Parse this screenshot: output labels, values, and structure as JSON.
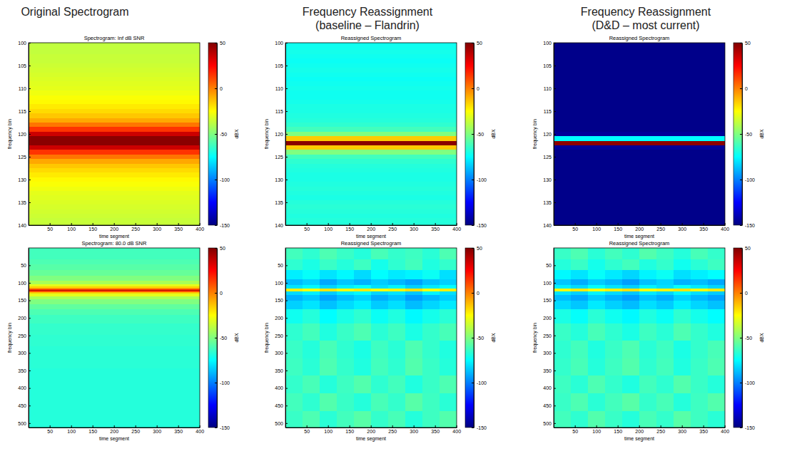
{
  "column_titles": [
    [
      "Original Spectrogram"
    ],
    [
      "Frequency Reassignment",
      "(baseline – Flandrin)"
    ],
    [
      "Frequency Reassignment",
      "(D&D – most current)"
    ]
  ],
  "chart_data": [
    {
      "type": "heatmap",
      "title": "Spectrogram: Inf dB SNR",
      "xlabel": "time segment",
      "ylabel": "frequency bin",
      "x": [
        200
      ],
      "y": [
        100,
        101,
        102,
        103,
        104,
        105,
        106,
        107,
        108,
        109,
        110,
        111,
        112,
        113,
        114,
        115,
        116,
        117,
        118,
        119,
        120,
        121,
        122,
        123,
        124,
        125,
        126,
        127,
        128,
        129,
        130,
        131,
        132,
        133,
        134,
        135,
        136,
        137,
        138,
        139,
        140
      ],
      "z": [
        [
          -38
        ],
        [
          -37
        ],
        [
          -37
        ],
        [
          -36
        ],
        [
          -36
        ],
        [
          -35
        ],
        [
          -34
        ],
        [
          -33
        ],
        [
          -32
        ],
        [
          -31
        ],
        [
          -30
        ],
        [
          -28
        ],
        [
          -26
        ],
        [
          -24
        ],
        [
          -21
        ],
        [
          -18
        ],
        [
          -14
        ],
        [
          -8
        ],
        [
          2
        ],
        [
          15
        ],
        [
          35
        ],
        [
          48
        ],
        [
          48
        ],
        [
          35
        ],
        [
          15
        ],
        [
          2
        ],
        [
          -8
        ],
        [
          -14
        ],
        [
          -18
        ],
        [
          -21
        ],
        [
          -24
        ],
        [
          -26
        ],
        [
          -28
        ],
        [
          -30
        ],
        [
          -31
        ],
        [
          -32
        ],
        [
          -33
        ],
        [
          -34
        ],
        [
          -35
        ],
        [
          -36
        ],
        [
          -36
        ]
      ],
      "xlim": [
        0.5,
        400.5
      ],
      "ylim": [
        100,
        140
      ],
      "xticks": [
        50,
        100,
        150,
        200,
        250,
        300,
        350,
        400
      ],
      "yticks": [
        100,
        105,
        110,
        115,
        120,
        125,
        130,
        135,
        140
      ],
      "colorbar": {
        "label": "dBX",
        "range": [
          -150,
          50
        ],
        "ticks": [
          50,
          0,
          -50,
          -100,
          -150
        ]
      }
    },
    {
      "type": "heatmap",
      "title": "Reassigned Spectrogram",
      "xlabel": "time segment",
      "ylabel": "frequency bin",
      "x": [
        200
      ],
      "y": [
        100,
        101,
        102,
        103,
        104,
        105,
        106,
        107,
        108,
        109,
        110,
        111,
        112,
        113,
        114,
        115,
        116,
        117,
        118,
        119,
        120,
        121,
        122,
        123,
        124,
        125,
        126,
        127,
        128,
        129,
        130,
        131,
        132,
        133,
        134,
        135,
        136,
        137,
        138,
        139,
        140
      ],
      "z": [
        [
          -72
        ],
        [
          -72
        ],
        [
          -71
        ],
        [
          -72
        ],
        [
          -73
        ],
        [
          -72
        ],
        [
          -71
        ],
        [
          -72
        ],
        [
          -73
        ],
        [
          -72
        ],
        [
          -71
        ],
        [
          -72
        ],
        [
          -72
        ],
        [
          -71
        ],
        [
          -70
        ],
        [
          -70
        ],
        [
          -69
        ],
        [
          -68
        ],
        [
          -66
        ],
        [
          -62
        ],
        [
          -50
        ],
        [
          -15
        ],
        [
          48
        ],
        [
          -15
        ],
        [
          -50
        ],
        [
          -62
        ],
        [
          -66
        ],
        [
          -68
        ],
        [
          -69
        ],
        [
          -70
        ],
        [
          -70
        ],
        [
          -69
        ],
        [
          -68
        ],
        [
          -69
        ],
        [
          -70
        ],
        [
          -68
        ],
        [
          -67
        ],
        [
          -68
        ],
        [
          -69
        ],
        [
          -68
        ],
        [
          -68
        ]
      ],
      "xlim": [
        0.5,
        400.5
      ],
      "ylim": [
        100,
        140
      ],
      "xticks": [
        50,
        100,
        150,
        200,
        250,
        300,
        350,
        400
      ],
      "yticks": [
        100,
        105,
        110,
        115,
        120,
        125,
        130,
        135,
        140
      ],
      "colorbar": {
        "label": "dBX",
        "range": [
          -150,
          50
        ],
        "ticks": [
          50,
          0,
          -50,
          -100,
          -150
        ]
      }
    },
    {
      "type": "heatmap",
      "title": "Reassigned Spectrogram",
      "xlabel": "time segment",
      "ylabel": "frequency bin",
      "x": [
        200
      ],
      "y": [
        100,
        101,
        102,
        103,
        104,
        105,
        106,
        107,
        108,
        109,
        110,
        111,
        112,
        113,
        114,
        115,
        116,
        117,
        118,
        119,
        120,
        121,
        122,
        123,
        124,
        125,
        126,
        127,
        128,
        129,
        130,
        131,
        132,
        133,
        134,
        135,
        136,
        137,
        138,
        139,
        140
      ],
      "z": [
        [
          -148
        ],
        [
          -148
        ],
        [
          -148
        ],
        [
          -148
        ],
        [
          -148
        ],
        [
          -148
        ],
        [
          -148
        ],
        [
          -148
        ],
        [
          -148
        ],
        [
          -148
        ],
        [
          -148
        ],
        [
          -148
        ],
        [
          -148
        ],
        [
          -148
        ],
        [
          -148
        ],
        [
          -148
        ],
        [
          -148
        ],
        [
          -148
        ],
        [
          -148
        ],
        [
          -148
        ],
        [
          -145
        ],
        [
          -75
        ],
        [
          48
        ],
        [
          -145
        ],
        [
          -148
        ],
        [
          -148
        ],
        [
          -148
        ],
        [
          -148
        ],
        [
          -148
        ],
        [
          -148
        ],
        [
          -148
        ],
        [
          -148
        ],
        [
          -148
        ],
        [
          -148
        ],
        [
          -148
        ],
        [
          -148
        ],
        [
          -148
        ],
        [
          -148
        ],
        [
          -148
        ],
        [
          -148
        ],
        [
          -148
        ]
      ],
      "xlim": [
        0.5,
        400.5
      ],
      "ylim": [
        100,
        140
      ],
      "xticks": [
        50,
        100,
        150,
        200,
        250,
        300,
        350,
        400
      ],
      "yticks": [
        100,
        105,
        110,
        115,
        120,
        125,
        130,
        135,
        140
      ],
      "colorbar": {
        "label": "dBX",
        "range": [
          -150,
          50
        ],
        "ticks": [
          50,
          0,
          -50,
          -100,
          -150
        ]
      }
    },
    {
      "type": "heatmap",
      "title": "Spectrogram: 80.0 dB SNR",
      "xlabel": "time segment",
      "ylabel": "frequency bin",
      "x": [
        200
      ],
      "y": [
        8,
        24,
        40,
        56,
        72,
        88,
        100,
        108,
        114,
        118,
        121,
        124,
        128,
        134,
        142,
        152,
        168,
        184,
        200,
        232,
        264,
        296,
        328,
        360,
        392,
        424,
        456,
        488,
        504
      ],
      "z": [
        [
          -62
        ],
        [
          -62
        ],
        [
          -60
        ],
        [
          -58
        ],
        [
          -55
        ],
        [
          -50
        ],
        [
          -42
        ],
        [
          -30
        ],
        [
          -15
        ],
        [
          10
        ],
        [
          40
        ],
        [
          10
        ],
        [
          -15
        ],
        [
          -30
        ],
        [
          -42
        ],
        [
          -50
        ],
        [
          -56
        ],
        [
          -60
        ],
        [
          -63
        ],
        [
          -65
        ],
        [
          -66
        ],
        [
          -67
        ],
        [
          -67
        ],
        [
          -68
        ],
        [
          -68
        ],
        [
          -68
        ],
        [
          -68
        ],
        [
          -68
        ],
        [
          -68
        ]
      ],
      "xlim": [
        0.5,
        400.5
      ],
      "ylim": [
        0.5,
        512.5
      ],
      "xticks": [
        50,
        100,
        150,
        200,
        250,
        300,
        350,
        400
      ],
      "yticks": [
        50,
        100,
        150,
        200,
        250,
        300,
        350,
        400,
        450,
        500
      ],
      "colorbar": {
        "label": "dBX",
        "range": [
          -150,
          50
        ],
        "ticks": [
          50,
          0,
          -50,
          -100,
          -150
        ]
      }
    },
    {
      "type": "heatmap",
      "title": "Reassigned Spectrogram",
      "xlabel": "time segment",
      "ylabel": "frequency bin",
      "x": [
        20,
        60,
        100,
        140,
        180,
        220,
        260,
        300,
        340,
        380
      ],
      "y": [
        16,
        48,
        80,
        100,
        112,
        120,
        128,
        140,
        160,
        192,
        240,
        290,
        340,
        390,
        440,
        490
      ],
      "z": [
        [
          -62,
          -66,
          -60,
          -64,
          -68,
          -61,
          -65,
          -63,
          -67,
          -60
        ],
        [
          -66,
          -70,
          -64,
          -68,
          -63,
          -71,
          -66,
          -62,
          -69,
          -65
        ],
        [
          -78,
          -74,
          -80,
          -76,
          -82,
          -75,
          -79,
          -77,
          -73,
          -81
        ],
        [
          -88,
          -84,
          -92,
          -86,
          -90,
          -85,
          -89,
          -93,
          -87,
          -84
        ],
        [
          -80,
          -76,
          -83,
          -78,
          -74,
          -81,
          -77,
          -84,
          -79,
          -75
        ],
        [
          -22,
          -25,
          -20,
          -24,
          -21,
          -26,
          -23,
          -19,
          -25,
          -22
        ],
        [
          -82,
          -78,
          -85,
          -79,
          -76,
          -83,
          -80,
          -86,
          -77,
          -81
        ],
        [
          -90,
          -86,
          -93,
          -88,
          -84,
          -91,
          -87,
          -94,
          -89,
          -85
        ],
        [
          -84,
          -80,
          -87,
          -82,
          -78,
          -85,
          -81,
          -88,
          -83,
          -79
        ],
        [
          -72,
          -68,
          -75,
          -70,
          -66,
          -73,
          -69,
          -76,
          -71,
          -67
        ],
        [
          -66,
          -62,
          -69,
          -64,
          -60,
          -67,
          -63,
          -70,
          -65,
          -61
        ],
        [
          -64,
          -68,
          -61,
          -66,
          -70,
          -63,
          -67,
          -60,
          -65,
          -69
        ],
        [
          -63,
          -67,
          -60,
          -65,
          -69,
          -62,
          -66,
          -59,
          -64,
          -68
        ],
        [
          -65,
          -61,
          -68,
          -63,
          -59,
          -66,
          -62,
          -69,
          -64,
          -60
        ],
        [
          -62,
          -66,
          -59,
          -64,
          -68,
          -61,
          -65,
          -58,
          -63,
          -67
        ],
        [
          -64,
          -60,
          -67,
          -62,
          -58,
          -65,
          -61,
          -68,
          -63,
          -59
        ]
      ],
      "xlim": [
        0.5,
        400.5
      ],
      "ylim": [
        0.5,
        512.5
      ],
      "xticks": [
        50,
        100,
        150,
        200,
        250,
        300,
        350,
        400
      ],
      "yticks": [
        50,
        100,
        150,
        200,
        250,
        300,
        350,
        400,
        450,
        500
      ],
      "colorbar": {
        "label": "dBX",
        "range": [
          -150,
          50
        ],
        "ticks": [
          50,
          0,
          -50,
          -100,
          -150
        ]
      }
    },
    {
      "type": "heatmap",
      "title": "Reassigned Spectrogram",
      "xlabel": "time segment",
      "ylabel": "frequency bin",
      "x": [
        20,
        60,
        100,
        140,
        180,
        220,
        260,
        300,
        340,
        380
      ],
      "y": [
        16,
        48,
        80,
        100,
        112,
        120,
        128,
        140,
        160,
        192,
        240,
        290,
        340,
        390,
        440,
        490
      ],
      "z": [
        [
          -64,
          -60,
          -67,
          -62,
          -66,
          -59,
          -63,
          -68,
          -61,
          -65
        ],
        [
          -68,
          -64,
          -71,
          -66,
          -62,
          -69,
          -65,
          -72,
          -67,
          -63
        ],
        [
          -76,
          -80,
          -74,
          -79,
          -83,
          -77,
          -73,
          -81,
          -78,
          -75
        ],
        [
          -86,
          -91,
          -85,
          -89,
          -94,
          -87,
          -83,
          -90,
          -88,
          -92
        ],
        [
          -78,
          -82,
          -75,
          -80,
          -84,
          -77,
          -81,
          -74,
          -79,
          -83
        ],
        [
          -24,
          -21,
          -26,
          -22,
          -19,
          -25,
          -23,
          -20,
          -24,
          -21
        ],
        [
          -80,
          -84,
          -77,
          -82,
          -86,
          -79,
          -83,
          -76,
          -81,
          -85
        ],
        [
          -88,
          -92,
          -85,
          -90,
          -94,
          -87,
          -91,
          -84,
          -89,
          -93
        ],
        [
          -82,
          -86,
          -79,
          -84,
          -88,
          -81,
          -85,
          -78,
          -83,
          -87
        ],
        [
          -70,
          -74,
          -67,
          -72,
          -76,
          -69,
          -73,
          -66,
          -71,
          -75
        ],
        [
          -64,
          -68,
          -61,
          -66,
          -70,
          -63,
          -67,
          -60,
          -65,
          -69
        ],
        [
          -66,
          -62,
          -69,
          -64,
          -60,
          -67,
          -63,
          -70,
          -65,
          -61
        ],
        [
          -65,
          -61,
          -68,
          -63,
          -59,
          -66,
          -62,
          -69,
          -64,
          -60
        ],
        [
          -63,
          -67,
          -60,
          -65,
          -69,
          -62,
          -66,
          -59,
          -64,
          -68
        ],
        [
          -64,
          -60,
          -67,
          -62,
          -58,
          -65,
          -61,
          -68,
          -63,
          -59
        ],
        [
          -62,
          -66,
          -59,
          -64,
          -68,
          -61,
          -65,
          -58,
          -63,
          -67
        ]
      ],
      "xlim": [
        0.5,
        400.5
      ],
      "ylim": [
        0.5,
        512.5
      ],
      "xticks": [
        50,
        100,
        150,
        200,
        250,
        300,
        350,
        400
      ],
      "yticks": [
        50,
        100,
        150,
        200,
        250,
        300,
        350,
        400,
        450,
        500
      ],
      "colorbar": {
        "label": "dBX",
        "range": [
          -150,
          50
        ],
        "ticks": [
          50,
          0,
          -50,
          -100,
          -150
        ]
      }
    }
  ]
}
